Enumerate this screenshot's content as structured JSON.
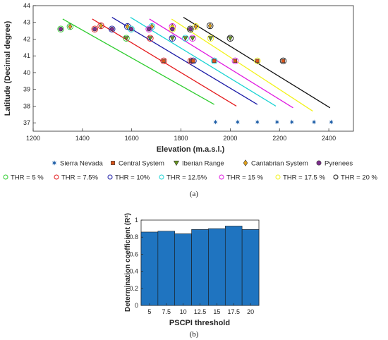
{
  "chart_data": [
    {
      "type": "scatter",
      "xlabel": "Elevation (m.a.s.l.)",
      "ylabel": "Latitude (Decimal degree)",
      "xlim": [
        1200,
        2500
      ],
      "ylim": [
        36.5,
        44
      ],
      "xticks": [
        "1200",
        "1400",
        "1600",
        "1800",
        "2000",
        "2200",
        "2400"
      ],
      "yticks": [
        "37",
        "38",
        "39",
        "40",
        "41",
        "42",
        "43",
        "44"
      ],
      "grid": false,
      "legend_position": "bottom",
      "caption": "(a)",
      "range_legend": [
        {
          "name": "Sierra Nevada",
          "marker": "star",
          "color": "#1f5fa8"
        },
        {
          "name": "Central System",
          "marker": "square",
          "color": "#d9541a"
        },
        {
          "name": "Iberian Range",
          "marker": "triangle-down",
          "color": "#6a9a1f"
        },
        {
          "name": "Cantabrian System",
          "marker": "diamond",
          "color": "#e3a21a"
        },
        {
          "name": "Pyrenees",
          "marker": "circle",
          "color": "#7e2f8e"
        }
      ],
      "series": [
        {
          "name": "THR = 5 %",
          "color": "#2ecc2e",
          "line": [
            [
              1320,
              43.2
            ],
            [
              1935,
              38.1
            ]
          ],
          "points": [
            {
              "x": 1312,
              "y": 42.6,
              "m": "circle"
            },
            {
              "x": 1350,
              "y": 42.75,
              "m": "diamond"
            },
            {
              "x": 1578,
              "y": 42.05,
              "m": "triangle-down"
            },
            {
              "x": 1940,
              "y": 37.05,
              "m": "star"
            }
          ]
        },
        {
          "name": "THR = 7.5%",
          "color": "#e41a1c",
          "line": [
            [
              1440,
              43.2
            ],
            [
              2025,
              38.0
            ]
          ],
          "points": [
            {
              "x": 1450,
              "y": 42.6,
              "m": "circle"
            },
            {
              "x": 1475,
              "y": 42.8,
              "m": "diamond"
            },
            {
              "x": 1675,
              "y": 42.05,
              "m": "triangle-down"
            },
            {
              "x": 1730,
              "y": 40.7,
              "m": "square"
            },
            {
              "x": 1840,
              "y": 40.7,
              "m": "square"
            },
            {
              "x": 2030,
              "y": 37.05,
              "m": "star"
            }
          ]
        },
        {
          "name": "THR = 10%",
          "color": "#1a1aa6",
          "line": [
            [
              1520,
              43.3
            ],
            [
              2110,
              38.1
            ]
          ],
          "points": [
            {
              "x": 1520,
              "y": 42.6,
              "m": "circle"
            },
            {
              "x": 1583,
              "y": 42.75,
              "m": "diamond"
            },
            {
              "x": 1765,
              "y": 42.05,
              "m": "triangle-down"
            },
            {
              "x": 1850,
              "y": 40.7,
              "m": "square"
            },
            {
              "x": 2110,
              "y": 37.05,
              "m": "star"
            }
          ]
        },
        {
          "name": "THR = 12.5%",
          "color": "#1ad3d3",
          "line": [
            [
              1595,
              43.3
            ],
            [
              2185,
              38.0
            ]
          ],
          "points": [
            {
              "x": 1598,
              "y": 42.6,
              "m": "circle"
            },
            {
              "x": 1682,
              "y": 42.75,
              "m": "diamond"
            },
            {
              "x": 1818,
              "y": 42.05,
              "m": "triangle-down"
            },
            {
              "x": 1935,
              "y": 40.7,
              "m": "square"
            },
            {
              "x": 2190,
              "y": 37.05,
              "m": "star"
            }
          ]
        },
        {
          "name": "THR = 15 %",
          "color": "#e01ae0",
          "line": [
            [
              1672,
              43.2
            ],
            [
              2255,
              37.9
            ]
          ],
          "points": [
            {
              "x": 1670,
              "y": 42.6,
              "m": "circle"
            },
            {
              "x": 1765,
              "y": 42.75,
              "m": "diamond"
            },
            {
              "x": 1847,
              "y": 42.05,
              "m": "triangle-down"
            },
            {
              "x": 2020,
              "y": 40.7,
              "m": "square"
            },
            {
              "x": 2250,
              "y": 37.05,
              "m": "star"
            }
          ]
        },
        {
          "name": "THR = 17.5 %",
          "color": "#f2f21a",
          "line": [
            [
              1762,
              43.2
            ],
            [
              2335,
              37.7
            ]
          ],
          "points": [
            {
              "x": 1765,
              "y": 42.6,
              "m": "circle"
            },
            {
              "x": 1860,
              "y": 42.75,
              "m": "diamond"
            },
            {
              "x": 1920,
              "y": 42.05,
              "m": "triangle-down"
            },
            {
              "x": 2110,
              "y": 40.7,
              "m": "square"
            },
            {
              "x": 2340,
              "y": 37.05,
              "m": "star"
            }
          ]
        },
        {
          "name": "THR = 20 %",
          "color": "#111111",
          "line": [
            [
              1810,
              43.3
            ],
            [
              2405,
              37.9
            ]
          ],
          "points": [
            {
              "x": 1838,
              "y": 42.6,
              "m": "circle"
            },
            {
              "x": 1918,
              "y": 42.8,
              "m": "diamond"
            },
            {
              "x": 2000,
              "y": 42.05,
              "m": "triangle-down"
            },
            {
              "x": 2215,
              "y": 40.7,
              "m": "square"
            },
            {
              "x": 2410,
              "y": 37.05,
              "m": "star"
            }
          ]
        }
      ]
    },
    {
      "type": "bar",
      "xlabel": "PSCPI threshold",
      "ylabel": "Determination coefficient (R²)",
      "ylim": [
        0,
        1
      ],
      "yticks": [
        "0",
        "0.2",
        "0.4",
        "0.6",
        "0.8",
        "1"
      ],
      "categories": [
        "5",
        "7.5",
        "10",
        "12.5",
        "15",
        "17.5",
        "20"
      ],
      "values": [
        0.86,
        0.87,
        0.84,
        0.89,
        0.9,
        0.93,
        0.89
      ],
      "color": "#1f74c0",
      "caption": "(b)"
    }
  ]
}
